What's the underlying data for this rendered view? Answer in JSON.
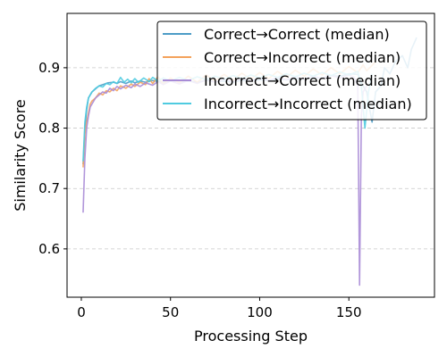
{
  "chart_data": {
    "type": "line",
    "title": "",
    "xlabel": "Processing Step",
    "ylabel": "Similarity Score",
    "xlim": [
      -8,
      198
    ],
    "ylim": [
      0.52,
      0.99
    ],
    "xticks": [
      0,
      50,
      100,
      150
    ],
    "yticks": [
      0.6,
      0.7,
      0.8,
      0.9
    ],
    "grid": "horizontal dashed",
    "legend_position": "top-right",
    "series": [
      {
        "name": "Correct→Correct (median)",
        "color": "#4c9cc6",
        "points": [
          [
            1,
            0.74
          ],
          [
            2,
            0.8
          ],
          [
            3,
            0.83
          ],
          [
            4,
            0.85
          ],
          [
            5,
            0.855
          ],
          [
            6,
            0.86
          ],
          [
            8,
            0.865
          ],
          [
            10,
            0.87
          ],
          [
            12,
            0.872
          ],
          [
            15,
            0.875
          ],
          [
            18,
            0.876
          ],
          [
            20,
            0.874
          ],
          [
            22,
            0.877
          ],
          [
            25,
            0.874
          ],
          [
            28,
            0.878
          ],
          [
            30,
            0.875
          ],
          [
            33,
            0.878
          ],
          [
            36,
            0.876
          ],
          [
            40,
            0.879
          ],
          [
            43,
            0.877
          ],
          [
            46,
            0.876
          ],
          [
            50,
            0.879
          ],
          [
            55,
            0.877
          ],
          [
            60,
            0.878
          ],
          [
            65,
            0.876
          ],
          [
            70,
            0.879
          ],
          [
            75,
            0.877
          ],
          [
            80,
            0.878
          ],
          [
            85,
            0.876
          ],
          [
            90,
            0.879
          ],
          [
            95,
            0.878
          ],
          [
            100,
            0.88
          ],
          [
            105,
            0.879
          ],
          [
            110,
            0.881
          ],
          [
            115,
            0.88
          ],
          [
            120,
            0.882
          ],
          [
            125,
            0.881
          ],
          [
            130,
            0.884
          ],
          [
            135,
            0.883
          ],
          [
            140,
            0.887
          ],
          [
            145,
            0.886
          ],
          [
            150,
            0.89
          ],
          [
            155,
            0.889
          ],
          [
            158,
            0.87
          ],
          [
            160,
            0.86
          ],
          [
            163,
            0.81
          ],
          [
            165,
            0.86
          ],
          [
            168,
            0.87
          ],
          [
            170,
            0.9
          ],
          [
            173,
            0.89
          ],
          [
            176,
            0.91
          ],
          [
            180,
            0.92
          ],
          [
            183,
            0.9
          ],
          [
            185,
            0.93
          ],
          [
            188,
            0.95
          ]
        ]
      },
      {
        "name": "Correct→Incorrect (median)",
        "color": "#f4a25b",
        "points": [
          [
            1,
            0.735
          ],
          [
            2,
            0.79
          ],
          [
            3,
            0.81
          ],
          [
            4,
            0.825
          ],
          [
            5,
            0.84
          ],
          [
            6,
            0.845
          ],
          [
            8,
            0.85
          ],
          [
            10,
            0.858
          ],
          [
            12,
            0.855
          ],
          [
            14,
            0.862
          ],
          [
            16,
            0.86
          ],
          [
            18,
            0.866
          ],
          [
            20,
            0.862
          ],
          [
            22,
            0.87
          ],
          [
            25,
            0.866
          ],
          [
            28,
            0.873
          ],
          [
            30,
            0.869
          ],
          [
            33,
            0.876
          ],
          [
            36,
            0.872
          ],
          [
            38,
            0.882
          ],
          [
            40,
            0.874
          ],
          [
            43,
            0.885
          ],
          [
            46,
            0.873
          ],
          [
            50,
            0.883
          ],
          [
            55,
            0.875
          ],
          [
            60,
            0.886
          ],
          [
            65,
            0.876
          ],
          [
            70,
            0.888
          ],
          [
            75,
            0.878
          ],
          [
            80,
            0.889
          ],
          [
            85,
            0.879
          ],
          [
            90,
            0.891
          ],
          [
            95,
            0.881
          ],
          [
            100,
            0.892
          ],
          [
            105,
            0.882
          ],
          [
            110,
            0.894
          ],
          [
            115,
            0.884
          ],
          [
            120,
            0.896
          ],
          [
            125,
            0.886
          ],
          [
            130,
            0.898
          ],
          [
            135,
            0.888
          ],
          [
            140,
            0.9
          ],
          [
            145,
            0.89
          ],
          [
            150,
            0.902
          ],
          [
            155,
            0.892
          ],
          [
            158,
            0.905
          ],
          [
            160,
            0.895
          ],
          [
            165,
            0.91
          ]
        ]
      },
      {
        "name": "Incorrect→Correct (median)",
        "color": "#a88bd6",
        "points": [
          [
            1,
            0.66
          ],
          [
            2,
            0.75
          ],
          [
            3,
            0.8
          ],
          [
            4,
            0.82
          ],
          [
            5,
            0.835
          ],
          [
            6,
            0.84
          ],
          [
            8,
            0.85
          ],
          [
            10,
            0.855
          ],
          [
            12,
            0.86
          ],
          [
            14,
            0.858
          ],
          [
            16,
            0.866
          ],
          [
            18,
            0.862
          ],
          [
            20,
            0.869
          ],
          [
            22,
            0.865
          ],
          [
            25,
            0.871
          ],
          [
            28,
            0.867
          ],
          [
            30,
            0.873
          ],
          [
            33,
            0.869
          ],
          [
            36,
            0.875
          ],
          [
            40,
            0.871
          ],
          [
            43,
            0.877
          ],
          [
            46,
            0.872
          ],
          [
            50,
            0.878
          ],
          [
            55,
            0.873
          ],
          [
            60,
            0.879
          ],
          [
            65,
            0.874
          ],
          [
            70,
            0.88
          ],
          [
            75,
            0.876
          ],
          [
            80,
            0.881
          ],
          [
            85,
            0.877
          ],
          [
            90,
            0.882
          ],
          [
            95,
            0.878
          ],
          [
            100,
            0.883
          ],
          [
            105,
            0.879
          ],
          [
            110,
            0.884
          ],
          [
            115,
            0.88
          ],
          [
            120,
            0.885
          ],
          [
            125,
            0.881
          ],
          [
            130,
            0.886
          ],
          [
            135,
            0.882
          ],
          [
            140,
            0.887
          ],
          [
            145,
            0.883
          ],
          [
            150,
            0.888
          ],
          [
            153,
            0.884
          ],
          [
            155,
            0.87
          ],
          [
            156,
            0.54
          ],
          [
            157,
            0.82
          ],
          [
            158,
            0.86
          ],
          [
            160,
            0.87
          ]
        ]
      },
      {
        "name": "Incorrect→Incorrect (median)",
        "color": "#4fcbe0",
        "points": [
          [
            1,
            0.745
          ],
          [
            2,
            0.81
          ],
          [
            3,
            0.835
          ],
          [
            4,
            0.85
          ],
          [
            5,
            0.855
          ],
          [
            6,
            0.86
          ],
          [
            8,
            0.866
          ],
          [
            10,
            0.87
          ],
          [
            12,
            0.868
          ],
          [
            14,
            0.874
          ],
          [
            16,
            0.872
          ],
          [
            18,
            0.877
          ],
          [
            20,
            0.874
          ],
          [
            22,
            0.884
          ],
          [
            24,
            0.876
          ],
          [
            26,
            0.881
          ],
          [
            28,
            0.875
          ],
          [
            30,
            0.882
          ],
          [
            32,
            0.876
          ],
          [
            35,
            0.883
          ],
          [
            38,
            0.877
          ],
          [
            40,
            0.884
          ],
          [
            43,
            0.878
          ],
          [
            46,
            0.883
          ],
          [
            50,
            0.878
          ],
          [
            55,
            0.884
          ],
          [
            60,
            0.879
          ],
          [
            65,
            0.885
          ],
          [
            70,
            0.88
          ],
          [
            75,
            0.886
          ],
          [
            80,
            0.881
          ],
          [
            85,
            0.887
          ],
          [
            90,
            0.882
          ],
          [
            95,
            0.888
          ],
          [
            100,
            0.883
          ],
          [
            105,
            0.889
          ],
          [
            110,
            0.884
          ],
          [
            115,
            0.89
          ],
          [
            120,
            0.885
          ],
          [
            125,
            0.891
          ],
          [
            130,
            0.886
          ],
          [
            135,
            0.892
          ],
          [
            140,
            0.887
          ],
          [
            145,
            0.893
          ],
          [
            150,
            0.888
          ],
          [
            155,
            0.894
          ],
          [
            157,
            0.87
          ],
          [
            159,
            0.8
          ],
          [
            161,
            0.86
          ],
          [
            163,
            0.89
          ]
        ]
      }
    ]
  }
}
